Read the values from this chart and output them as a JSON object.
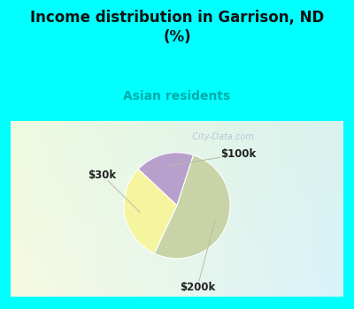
{
  "title": "Income distribution in Garrison, ND\n(%)",
  "subtitle": "Asian residents",
  "title_color": "#111111",
  "subtitle_color": "#00aaaa",
  "top_bg_color": "#00FFFF",
  "slices": [
    {
      "label": "$100k",
      "value": 18,
      "color": "#b8a0cc"
    },
    {
      "label": "$30k",
      "value": 30,
      "color": "#f5f5a0"
    },
    {
      "label": "$200k",
      "value": 52,
      "color": "#c8d4a8"
    }
  ],
  "startangle": 72,
  "watermark": "  City-Data.com"
}
